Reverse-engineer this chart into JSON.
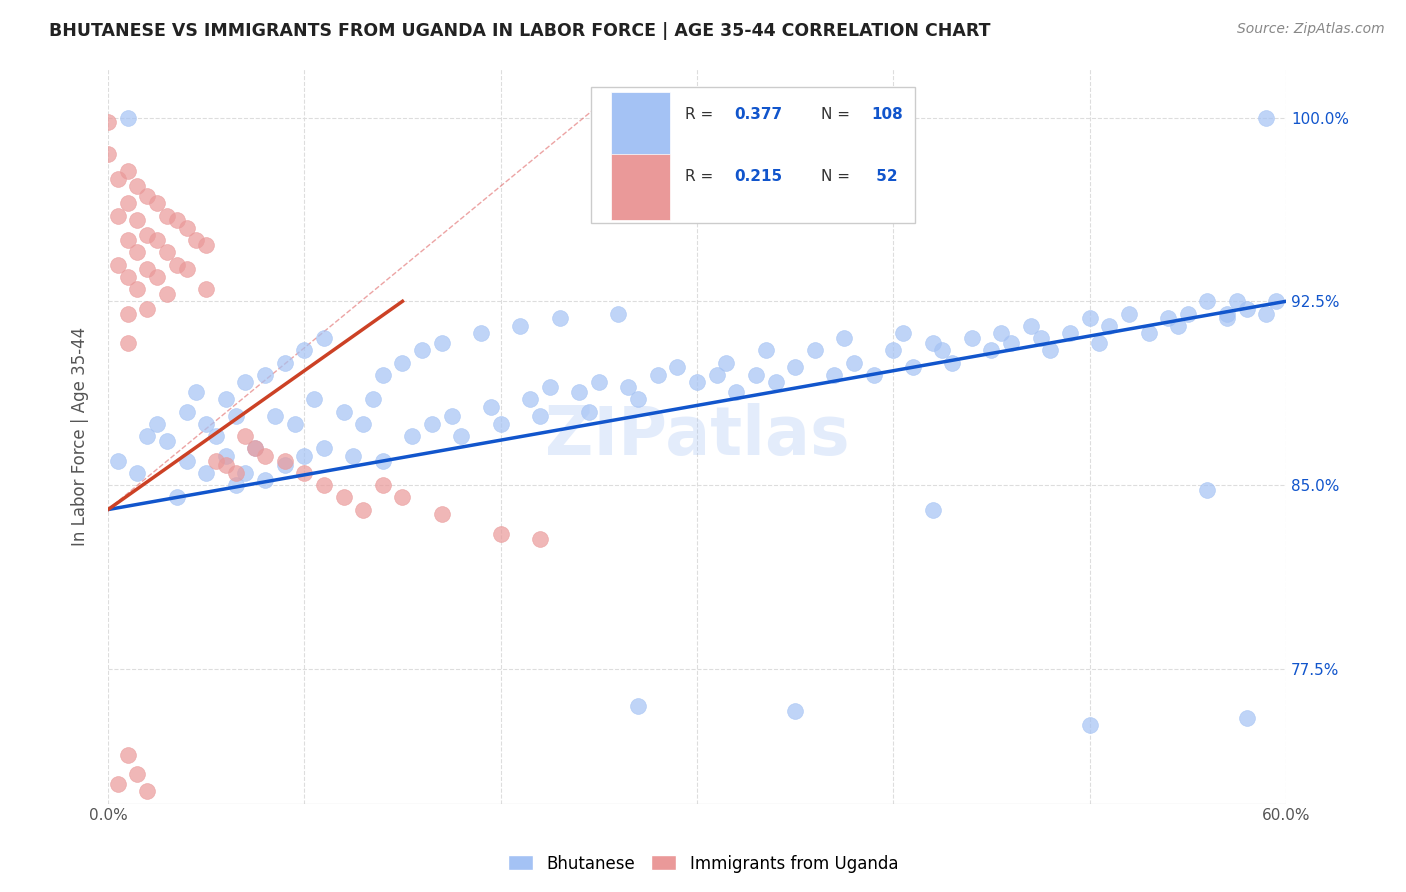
{
  "title": "BHUTANESE VS IMMIGRANTS FROM UGANDA IN LABOR FORCE | AGE 35-44 CORRELATION CHART",
  "source": "Source: ZipAtlas.com",
  "ylabel": "In Labor Force | Age 35-44",
  "xmin": 0.0,
  "xmax": 0.6,
  "ymin": 0.72,
  "ymax": 1.02,
  "yticks": [
    0.775,
    0.85,
    0.925,
    1.0
  ],
  "ytick_labels": [
    "77.5%",
    "85.0%",
    "92.5%",
    "100.0%"
  ],
  "xticks": [
    0.0,
    0.1,
    0.2,
    0.3,
    0.4,
    0.5,
    0.6
  ],
  "xtick_labels": [
    "0.0%",
    "",
    "",
    "",
    "",
    "",
    "60.0%"
  ],
  "legend_R_blue": "0.377",
  "legend_N_blue": "108",
  "legend_R_pink": "0.215",
  "legend_N_pink": " 52",
  "blue_color": "#a4c2f4",
  "pink_color": "#ea9999",
  "trend_blue": "#1155cc",
  "trend_pink": "#cc4125",
  "diagonal_color": "#e06666",
  "background_color": "#ffffff",
  "grid_color": "#dddddd",
  "blue_trend_x0": 0.0,
  "blue_trend_y0": 0.84,
  "blue_trend_x1": 0.6,
  "blue_trend_y1": 0.925,
  "pink_trend_x0": 0.0,
  "pink_trend_y0": 0.84,
  "pink_trend_x1": 0.15,
  "pink_trend_y1": 0.925,
  "blue_x": [
    0.005,
    0.015,
    0.02,
    0.025,
    0.03,
    0.035,
    0.04,
    0.04,
    0.045,
    0.05,
    0.05,
    0.055,
    0.06,
    0.06,
    0.065,
    0.065,
    0.07,
    0.07,
    0.075,
    0.08,
    0.08,
    0.085,
    0.09,
    0.09,
    0.095,
    0.1,
    0.1,
    0.105,
    0.11,
    0.11,
    0.12,
    0.125,
    0.13,
    0.135,
    0.14,
    0.14,
    0.15,
    0.155,
    0.16,
    0.165,
    0.17,
    0.175,
    0.18,
    0.19,
    0.195,
    0.2,
    0.21,
    0.215,
    0.22,
    0.225,
    0.23,
    0.24,
    0.245,
    0.25,
    0.26,
    0.265,
    0.27,
    0.28,
    0.29,
    0.3,
    0.31,
    0.315,
    0.32,
    0.33,
    0.335,
    0.34,
    0.35,
    0.36,
    0.37,
    0.375,
    0.38,
    0.39,
    0.4,
    0.405,
    0.41,
    0.42,
    0.425,
    0.43,
    0.44,
    0.45,
    0.455,
    0.46,
    0.47,
    0.475,
    0.48,
    0.49,
    0.5,
    0.505,
    0.51,
    0.52,
    0.53,
    0.54,
    0.545,
    0.55,
    0.56,
    0.57,
    0.57,
    0.575,
    0.58,
    0.59,
    0.595,
    0.01,
    0.27,
    0.35,
    0.42,
    0.5,
    0.56,
    0.58,
    0.59
  ],
  "blue_y": [
    0.86,
    0.855,
    0.87,
    0.875,
    0.868,
    0.845,
    0.88,
    0.86,
    0.888,
    0.875,
    0.855,
    0.87,
    0.885,
    0.862,
    0.878,
    0.85,
    0.892,
    0.855,
    0.865,
    0.895,
    0.852,
    0.878,
    0.9,
    0.858,
    0.875,
    0.905,
    0.862,
    0.885,
    0.91,
    0.865,
    0.88,
    0.862,
    0.875,
    0.885,
    0.895,
    0.86,
    0.9,
    0.87,
    0.905,
    0.875,
    0.908,
    0.878,
    0.87,
    0.912,
    0.882,
    0.875,
    0.915,
    0.885,
    0.878,
    0.89,
    0.918,
    0.888,
    0.88,
    0.892,
    0.92,
    0.89,
    0.885,
    0.895,
    0.898,
    0.892,
    0.895,
    0.9,
    0.888,
    0.895,
    0.905,
    0.892,
    0.898,
    0.905,
    0.895,
    0.91,
    0.9,
    0.895,
    0.905,
    0.912,
    0.898,
    0.908,
    0.905,
    0.9,
    0.91,
    0.905,
    0.912,
    0.908,
    0.915,
    0.91,
    0.905,
    0.912,
    0.918,
    0.908,
    0.915,
    0.92,
    0.912,
    0.918,
    0.915,
    0.92,
    0.925,
    0.918,
    0.92,
    0.925,
    0.922,
    0.92,
    0.925,
    1.0,
    0.76,
    0.758,
    0.84,
    0.752,
    0.848,
    0.755,
    1.0
  ],
  "pink_x": [
    0.0,
    0.0,
    0.005,
    0.005,
    0.005,
    0.01,
    0.01,
    0.01,
    0.01,
    0.01,
    0.01,
    0.015,
    0.015,
    0.015,
    0.015,
    0.02,
    0.02,
    0.02,
    0.02,
    0.025,
    0.025,
    0.025,
    0.03,
    0.03,
    0.03,
    0.035,
    0.035,
    0.04,
    0.04,
    0.045,
    0.05,
    0.05,
    0.055,
    0.06,
    0.065,
    0.07,
    0.075,
    0.08,
    0.09,
    0.1,
    0.11,
    0.12,
    0.13,
    0.14,
    0.15,
    0.17,
    0.2,
    0.22,
    0.005,
    0.01,
    0.015,
    0.02
  ],
  "pink_y": [
    0.998,
    0.985,
    0.975,
    0.96,
    0.94,
    0.978,
    0.965,
    0.95,
    0.935,
    0.92,
    0.908,
    0.972,
    0.958,
    0.945,
    0.93,
    0.968,
    0.952,
    0.938,
    0.922,
    0.965,
    0.95,
    0.935,
    0.96,
    0.945,
    0.928,
    0.958,
    0.94,
    0.955,
    0.938,
    0.95,
    0.948,
    0.93,
    0.86,
    0.858,
    0.855,
    0.87,
    0.865,
    0.862,
    0.86,
    0.855,
    0.85,
    0.845,
    0.84,
    0.85,
    0.845,
    0.838,
    0.83,
    0.828,
    0.728,
    0.74,
    0.732,
    0.725
  ]
}
